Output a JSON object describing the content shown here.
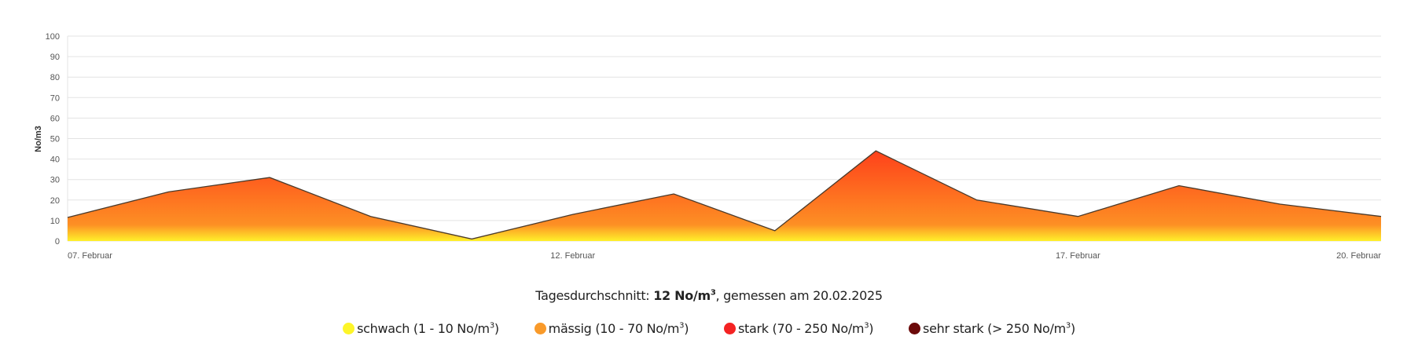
{
  "chart_data": {
    "type": "area",
    "ylabel": "No/m3",
    "ylim": [
      0,
      100
    ],
    "yticks": [
      "0",
      "10",
      "20",
      "30",
      "40",
      "50",
      "60",
      "70",
      "80",
      "90",
      "100"
    ],
    "x": [
      "07.02",
      "08.02",
      "09.02",
      "10.02",
      "11.02",
      "12.02",
      "13.02",
      "14.02",
      "15.02",
      "16.02",
      "17.02",
      "18.02",
      "19.02",
      "20.02"
    ],
    "xtick_labels": [
      {
        "index": 0,
        "label": "07. Februar"
      },
      {
        "index": 5,
        "label": "12. Februar"
      },
      {
        "index": 10,
        "label": "17. Februar"
      },
      {
        "index": 13,
        "label": "20. Februar"
      }
    ],
    "values": [
      11.5,
      24,
      31,
      12,
      1,
      13,
      23,
      5,
      44,
      20,
      12,
      27,
      18,
      12
    ],
    "grid": true,
    "gradient_colors": {
      "low": "#fff02a",
      "mid": "#fd8f24",
      "high": "#ff3f1a"
    },
    "line_color": "#4a3a2a"
  },
  "summary": {
    "prefix": "Tagesdurchschnitt: ",
    "value": "12 No/m",
    "sup": "3",
    "suffix": ", gemessen am 20.02.2025"
  },
  "legend": [
    {
      "label": "schwach (1 - 10 No/m",
      "sup": "3",
      "close": ")",
      "color": "#fdf529"
    },
    {
      "label": "mässig (10 - 70 No/m",
      "sup": "3",
      "close": ")",
      "color": "#f99a2a"
    },
    {
      "label": "stark (70 - 250 No/m",
      "sup": "3",
      "close": ")",
      "color": "#f42323"
    },
    {
      "label": "sehr stark (> 250 No/m",
      "sup": "3",
      "close": ")",
      "color": "#6b0a0a"
    }
  ]
}
